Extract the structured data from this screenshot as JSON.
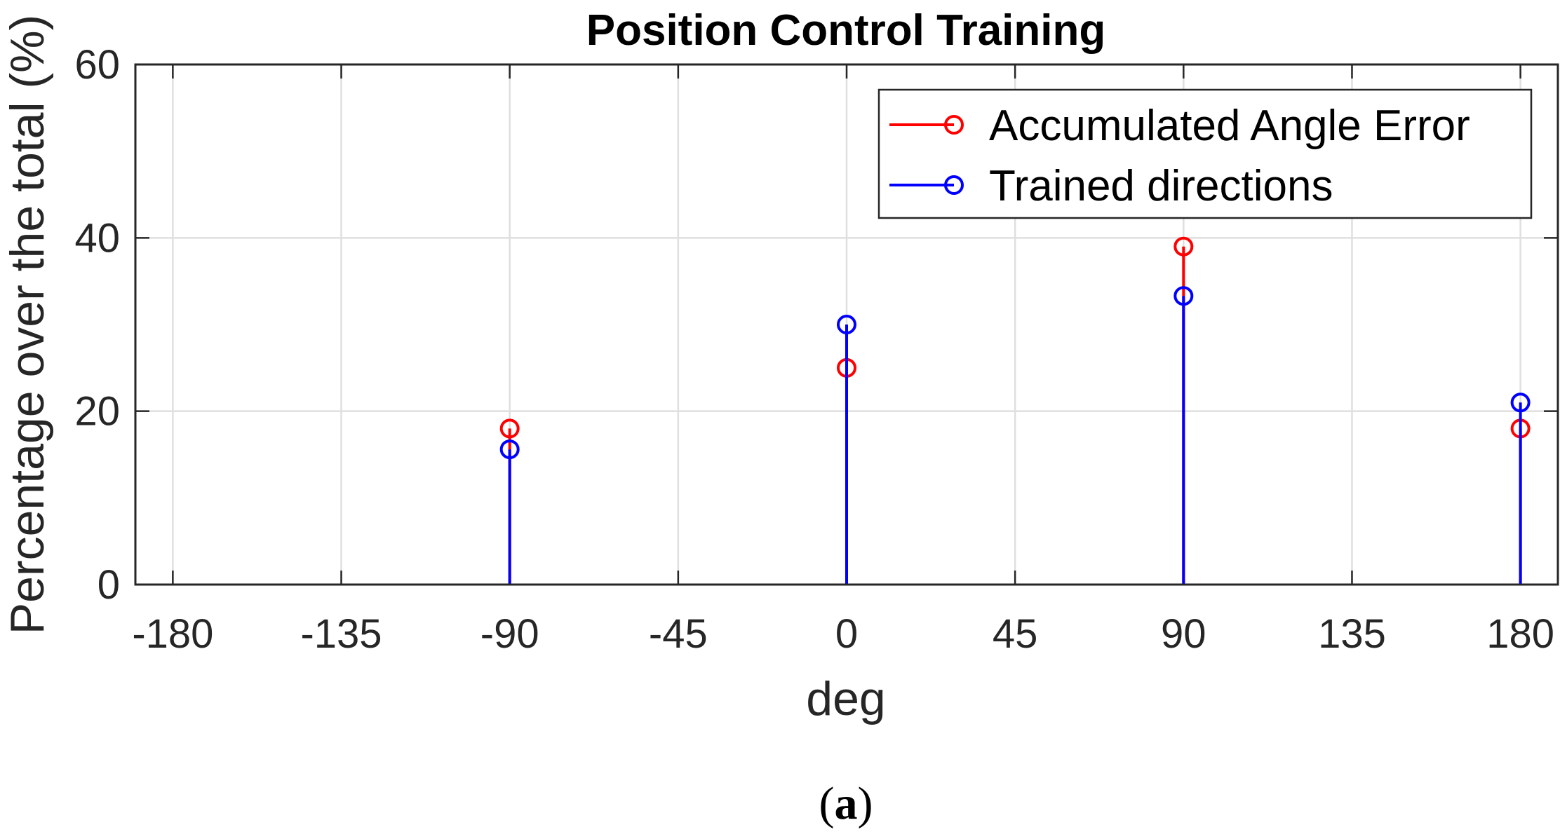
{
  "chart_data": {
    "type": "stem",
    "title": "Position Control Training",
    "xlabel": "deg",
    "ylabel": "Percentage over the total (%)",
    "xlim": [
      -190,
      190
    ],
    "ylim": [
      0,
      60
    ],
    "xticks": [
      -180,
      -135,
      -90,
      -45,
      0,
      45,
      90,
      135,
      180
    ],
    "xtick_labels": [
      "-180",
      "-135",
      "-90",
      "-45",
      "0",
      "45",
      "90",
      "135",
      "180"
    ],
    "yticks": [
      0,
      20,
      40,
      60
    ],
    "ytick_labels": [
      "0",
      "20",
      "40",
      "60"
    ],
    "grid": true,
    "legend_position": "top-right",
    "series": [
      {
        "name": "Accumulated Angle Error",
        "color": "#ff0000",
        "x": [
          -90,
          0,
          90,
          180
        ],
        "values": [
          18,
          25,
          39,
          18
        ]
      },
      {
        "name": "Trained directions",
        "color": "#0000ff",
        "x": [
          -90,
          0,
          90,
          180
        ],
        "values": [
          15.6,
          30,
          33.3,
          21
        ]
      }
    ]
  },
  "caption": {
    "open": "(",
    "letter": "a",
    "close": ")"
  }
}
